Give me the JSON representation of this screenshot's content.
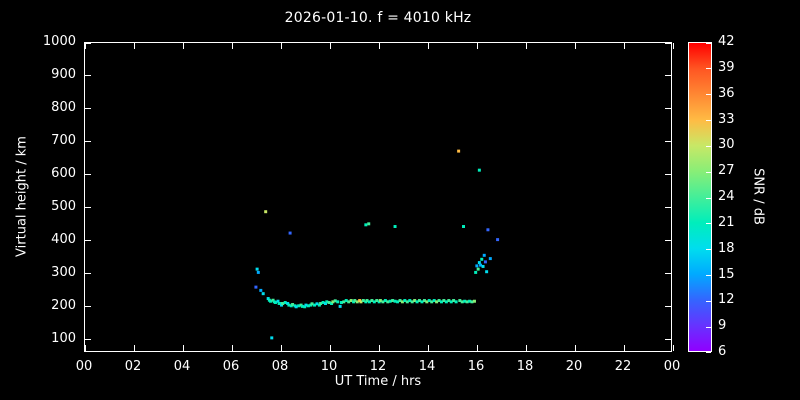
{
  "colors": {
    "background": "#000000",
    "foreground": "#ffffff"
  },
  "chart_data": {
    "type": "scatter",
    "title": "2026-01-10. f = 4010 kHz",
    "xlabel": "UT Time / hrs",
    "ylabel": "Virtual height / km",
    "xlim": [
      0,
      24
    ],
    "ylim": [
      60,
      1000
    ],
    "grid": false,
    "x_ticks": [
      {
        "v": 0,
        "label": "00"
      },
      {
        "v": 2,
        "label": "02"
      },
      {
        "v": 4,
        "label": "04"
      },
      {
        "v": 6,
        "label": "06"
      },
      {
        "v": 8,
        "label": "08"
      },
      {
        "v": 10,
        "label": "10"
      },
      {
        "v": 12,
        "label": "12"
      },
      {
        "v": 14,
        "label": "14"
      },
      {
        "v": 16,
        "label": "16"
      },
      {
        "v": 18,
        "label": "18"
      },
      {
        "v": 20,
        "label": "20"
      },
      {
        "v": 22,
        "label": "22"
      },
      {
        "v": 24,
        "label": "00"
      }
    ],
    "y_ticks": [
      {
        "v": 100,
        "label": "100"
      },
      {
        "v": 200,
        "label": "200"
      },
      {
        "v": 300,
        "label": "300"
      },
      {
        "v": 400,
        "label": "400"
      },
      {
        "v": 500,
        "label": "500"
      },
      {
        "v": 600,
        "label": "600"
      },
      {
        "v": 700,
        "label": "700"
      },
      {
        "v": 800,
        "label": "800"
      },
      {
        "v": 900,
        "label": "900"
      },
      {
        "v": 1000,
        "label": "1000"
      }
    ],
    "colorbar": {
      "label": "SNR / dB",
      "min": 6,
      "max": 42,
      "tick_values": [
        6,
        9,
        12,
        15,
        18,
        21,
        24,
        27,
        30,
        33,
        36,
        39,
        42
      ],
      "stops": [
        {
          "v": 6,
          "c": "#9000ff"
        },
        {
          "v": 9,
          "c": "#6633ff"
        },
        {
          "v": 12,
          "c": "#3366ff"
        },
        {
          "v": 15,
          "c": "#00aaff"
        },
        {
          "v": 18,
          "c": "#00ddee"
        },
        {
          "v": 21,
          "c": "#00eebb"
        },
        {
          "v": 24,
          "c": "#44ee99"
        },
        {
          "v": 27,
          "c": "#88ee77"
        },
        {
          "v": 30,
          "c": "#c8e866"
        },
        {
          "v": 33,
          "c": "#ffbb44"
        },
        {
          "v": 36,
          "c": "#ff8833"
        },
        {
          "v": 39,
          "c": "#ff5522"
        },
        {
          "v": 42,
          "c": "#ff0000"
        }
      ]
    },
    "points": [
      [
        7.0,
        255,
        12
      ],
      [
        7.05,
        310,
        18
      ],
      [
        7.1,
        300,
        15
      ],
      [
        7.2,
        245,
        15
      ],
      [
        7.3,
        235,
        18
      ],
      [
        7.4,
        485,
        30
      ],
      [
        7.65,
        100,
        18
      ],
      [
        8.4,
        420,
        12
      ],
      [
        7.5,
        220,
        18
      ],
      [
        7.55,
        215,
        21
      ],
      [
        7.6,
        212,
        21
      ],
      [
        7.7,
        215,
        24
      ],
      [
        7.75,
        210,
        21
      ],
      [
        7.8,
        208,
        21
      ],
      [
        7.9,
        212,
        18
      ],
      [
        7.95,
        205,
        21
      ],
      [
        8.0,
        205,
        21
      ],
      [
        8.05,
        200,
        18
      ],
      [
        8.1,
        205,
        24
      ],
      [
        8.2,
        208,
        21
      ],
      [
        8.3,
        205,
        18
      ],
      [
        8.35,
        200,
        21
      ],
      [
        8.45,
        198,
        21
      ],
      [
        8.5,
        202,
        24
      ],
      [
        8.6,
        198,
        21
      ],
      [
        8.65,
        195,
        18
      ],
      [
        8.75,
        198,
        21
      ],
      [
        8.85,
        200,
        24
      ],
      [
        8.9,
        196,
        21
      ],
      [
        9.0,
        195,
        21
      ],
      [
        9.05,
        200,
        18
      ],
      [
        9.15,
        198,
        21
      ],
      [
        9.25,
        200,
        21
      ],
      [
        9.3,
        204,
        24
      ],
      [
        9.4,
        200,
        21
      ],
      [
        9.5,
        204,
        18
      ],
      [
        9.6,
        200,
        21
      ],
      [
        9.65,
        205,
        24
      ],
      [
        9.75,
        208,
        21
      ],
      [
        9.85,
        205,
        18
      ],
      [
        9.9,
        210,
        21
      ],
      [
        10.0,
        208,
        24
      ],
      [
        10.1,
        205,
        21
      ],
      [
        10.15,
        210,
        27
      ],
      [
        10.25,
        213,
        24
      ],
      [
        10.35,
        210,
        21
      ],
      [
        10.45,
        196,
        18
      ],
      [
        10.5,
        208,
        21
      ],
      [
        10.6,
        210,
        24
      ],
      [
        10.7,
        214,
        21
      ],
      [
        10.8,
        210,
        24
      ],
      [
        10.9,
        214,
        27
      ],
      [
        11.0,
        210,
        21
      ],
      [
        11.05,
        214,
        24
      ],
      [
        11.15,
        210,
        27
      ],
      [
        11.25,
        214,
        33
      ],
      [
        11.3,
        210,
        30
      ],
      [
        11.4,
        214,
        24
      ],
      [
        11.5,
        210,
        21
      ],
      [
        11.55,
        214,
        24
      ],
      [
        11.65,
        210,
        21
      ],
      [
        11.75,
        214,
        24
      ],
      [
        11.85,
        210,
        21
      ],
      [
        11.95,
        214,
        24
      ],
      [
        12.05,
        210,
        21
      ],
      [
        12.1,
        214,
        27
      ],
      [
        12.2,
        210,
        24
      ],
      [
        12.3,
        214,
        21
      ],
      [
        12.4,
        210,
        24
      ],
      [
        12.5,
        212,
        21
      ],
      [
        12.6,
        214,
        24
      ],
      [
        12.7,
        212,
        21
      ],
      [
        12.8,
        210,
        21
      ],
      [
        12.9,
        214,
        24
      ],
      [
        13.0,
        210,
        27
      ],
      [
        13.1,
        214,
        21
      ],
      [
        13.2,
        210,
        24
      ],
      [
        13.3,
        214,
        21
      ],
      [
        13.4,
        210,
        24
      ],
      [
        13.5,
        214,
        27
      ],
      [
        13.6,
        210,
        21
      ],
      [
        13.7,
        214,
        24
      ],
      [
        13.8,
        210,
        21
      ],
      [
        13.9,
        214,
        24
      ],
      [
        14.0,
        210,
        27
      ],
      [
        14.1,
        214,
        21
      ],
      [
        14.2,
        210,
        24
      ],
      [
        14.3,
        214,
        21
      ],
      [
        14.4,
        210,
        27
      ],
      [
        14.5,
        214,
        24
      ],
      [
        14.6,
        210,
        21
      ],
      [
        14.7,
        214,
        24
      ],
      [
        14.8,
        210,
        21
      ],
      [
        14.9,
        214,
        24
      ],
      [
        15.0,
        210,
        21
      ],
      [
        15.1,
        214,
        24
      ],
      [
        15.2,
        210,
        21
      ],
      [
        15.35,
        214,
        24
      ],
      [
        15.45,
        210,
        24
      ],
      [
        15.55,
        212,
        21
      ],
      [
        15.65,
        210,
        24
      ],
      [
        15.75,
        212,
        21
      ],
      [
        15.85,
        210,
        24
      ],
      [
        15.95,
        212,
        27
      ],
      [
        11.5,
        445,
        21
      ],
      [
        11.62,
        448,
        24
      ],
      [
        12.7,
        440,
        21
      ],
      [
        15.3,
        670,
        33
      ],
      [
        15.5,
        440,
        21
      ],
      [
        16.15,
        612,
        21
      ],
      [
        16.0,
        300,
        21
      ],
      [
        16.05,
        320,
        15
      ],
      [
        16.1,
        310,
        24
      ],
      [
        16.15,
        330,
        18
      ],
      [
        16.2,
        322,
        15
      ],
      [
        16.25,
        340,
        21
      ],
      [
        16.3,
        318,
        18
      ],
      [
        16.35,
        352,
        15
      ],
      [
        16.4,
        332,
        12
      ],
      [
        16.45,
        302,
        18
      ],
      [
        16.5,
        430,
        12
      ],
      [
        16.6,
        342,
        15
      ],
      [
        16.9,
        400,
        12
      ]
    ]
  }
}
